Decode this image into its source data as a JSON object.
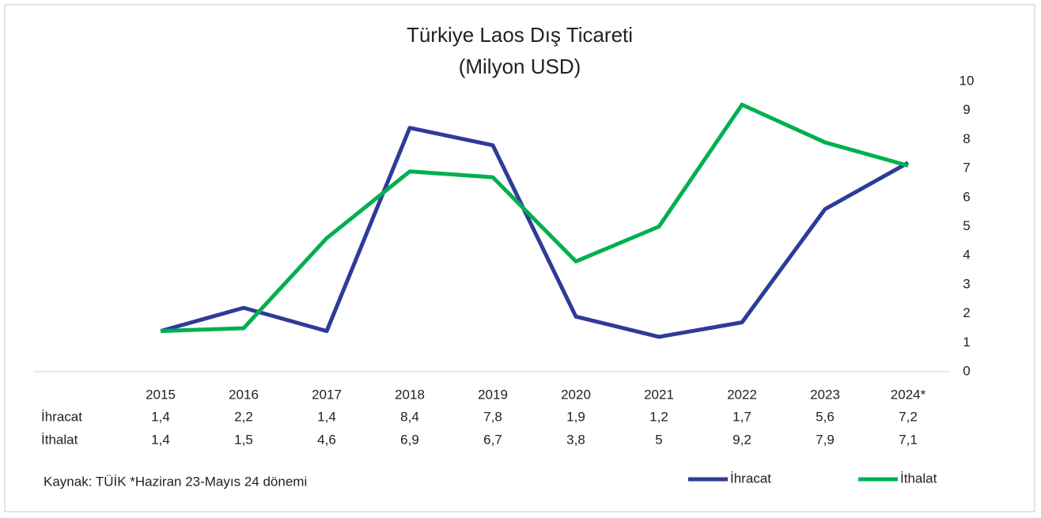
{
  "chart_data": {
    "type": "line",
    "title": "Türkiye Laos Dış Ticareti",
    "subtitle": "(Milyon USD)",
    "categories": [
      "2015",
      "2016",
      "2017",
      "2018",
      "2019",
      "2020",
      "2021",
      "2022",
      "2023",
      "2024*"
    ],
    "series": [
      {
        "name": "İhracat",
        "color": "#2e3b97",
        "values": [
          1.4,
          2.2,
          1.4,
          8.4,
          7.8,
          1.9,
          1.2,
          1.7,
          5.6,
          7.2
        ],
        "value_labels": [
          "1,4",
          "2,2",
          "1,4",
          "8,4",
          "7,8",
          "1,9",
          "1,2",
          "1,7",
          "5,6",
          "7,2"
        ]
      },
      {
        "name": "İthalat",
        "color": "#00b050",
        "values": [
          1.4,
          1.5,
          4.6,
          6.9,
          6.7,
          3.8,
          5,
          9.2,
          7.9,
          7.1
        ],
        "value_labels": [
          "1,4",
          "1,5",
          "4,6",
          "6,9",
          "6,7",
          "3,8",
          "5",
          "9,2",
          "7,9",
          "7,1"
        ]
      }
    ],
    "ylim": [
      0,
      10
    ],
    "yticks": [
      0,
      1,
      2,
      3,
      4,
      5,
      6,
      7,
      8,
      9,
      10
    ],
    "grid": false,
    "y_axis_side": "right",
    "legend": "bottom-right",
    "annotation": "Kaynak: TÜİK *Haziran 23-Mayıs 24 dönemi"
  }
}
